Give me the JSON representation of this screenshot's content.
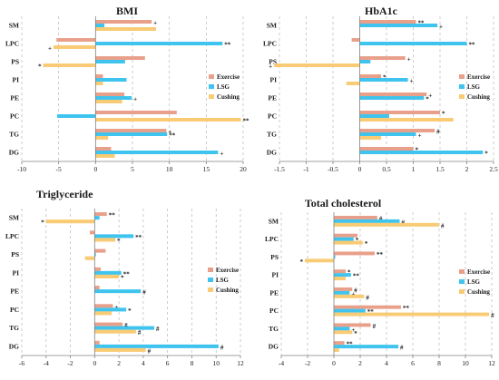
{
  "colors": {
    "Exercise": "#E9A08A",
    "LSG": "#3EC4EE",
    "Cushing": "#F8CB74",
    "gridline": "#B8B8B8",
    "axis": "#808080",
    "text": "#1A1A1A"
  },
  "chart_data": [
    {
      "type": "bar",
      "title": "BMI",
      "orientation": "horizontal",
      "categories": [
        "SM",
        "LPC",
        "PS",
        "PI",
        "PE",
        "PC",
        "TG",
        "DG"
      ],
      "series": [
        {
          "name": "Exercise",
          "values": [
            7.6,
            -5.3,
            6.7,
            1.0,
            3.9,
            11.0,
            9.6,
            2.1
          ],
          "marks": [
            "+",
            "",
            "",
            "",
            "",
            "",
            "+",
            ""
          ]
        },
        {
          "name": "LSG",
          "values": [
            1.2,
            17.2,
            4.0,
            4.2,
            4.9,
            -5.2,
            9.7,
            16.6
          ],
          "marks": [
            "",
            "**",
            "",
            "",
            "+",
            "",
            "**",
            "+"
          ]
        },
        {
          "name": "Cushing",
          "values": [
            8.2,
            -5.7,
            -7.1,
            1.0,
            3.6,
            19.7,
            1.7,
            2.6
          ],
          "marks": [
            "",
            "+",
            "*",
            "",
            "",
            "**",
            "",
            ""
          ]
        }
      ],
      "xlim": [
        -10,
        20
      ],
      "xticks": [
        -10,
        -5,
        0,
        5,
        10,
        15,
        20
      ],
      "legend": "right"
    },
    {
      "type": "bar",
      "title": "HbA1c",
      "orientation": "horizontal",
      "categories": [
        "SM",
        "LPC",
        "PS",
        "PI",
        "PE",
        "PC",
        "TG",
        "DG"
      ],
      "series": [
        {
          "name": "Exercise",
          "values": [
            1.05,
            -0.15,
            0.85,
            0.4,
            1.25,
            1.5,
            1.4,
            1.0
          ],
          "marks": [
            "**",
            "",
            "+",
            "*",
            "+",
            "*",
            "#",
            "*"
          ]
        },
        {
          "name": "LSG",
          "values": [
            1.45,
            2.0,
            0.2,
            0.9,
            1.2,
            0.55,
            1.05,
            2.3
          ],
          "marks": [
            "+",
            "**",
            "",
            "+",
            "*",
            "",
            "+",
            "*"
          ]
        },
        {
          "name": "Cushing",
          "values": [
            0.0,
            0.0,
            -1.6,
            -0.25,
            0.0,
            1.75,
            0.4,
            0.0
          ],
          "marks": [
            "",
            "",
            "+",
            "",
            "",
            "",
            "",
            ""
          ]
        }
      ],
      "xlim": [
        -1.5,
        2.5
      ],
      "xticks": [
        -1.5,
        -1,
        -0.5,
        0,
        0.5,
        1,
        1.5,
        2,
        2.5
      ],
      "legend": "right"
    },
    {
      "type": "bar",
      "title": "Triglyceride",
      "orientation": "horizontal",
      "categories": [
        "SM",
        "LPC",
        "PS",
        "PI",
        "PE",
        "PC",
        "TG",
        "DG"
      ],
      "series": [
        {
          "name": "Exercise",
          "values": [
            1.0,
            -0.4,
            0.9,
            0.5,
            0.4,
            1.5,
            2.3,
            0.4
          ],
          "marks": [
            "**",
            "",
            "",
            "",
            "",
            "+",
            "#",
            ""
          ]
        },
        {
          "name": "LSG",
          "values": [
            0.4,
            3.2,
            0.1,
            2.2,
            3.8,
            2.6,
            4.9,
            10.2
          ],
          "marks": [
            "",
            "**",
            "",
            "**",
            "#",
            "*",
            "#",
            "#"
          ]
        },
        {
          "name": "Cushing",
          "values": [
            -4.0,
            1.7,
            -0.8,
            2.0,
            0.0,
            1.4,
            3.4,
            4.2
          ],
          "marks": [
            "*",
            "*",
            "",
            "*",
            "",
            "",
            "#",
            "#"
          ]
        }
      ],
      "xlim": [
        -6,
        12
      ],
      "xticks": [
        -6,
        -4,
        -2,
        0,
        2,
        4,
        6,
        8,
        10,
        12
      ],
      "legend": "right"
    },
    {
      "type": "bar",
      "title": "Total cholesterol",
      "orientation": "horizontal",
      "categories": [
        "SM",
        "LPC",
        "PS",
        "PI",
        "PE",
        "PC",
        "TG",
        "DG"
      ],
      "series": [
        {
          "name": "Exercise",
          "values": [
            3.3,
            1.8,
            3.1,
            0.9,
            1.4,
            5.1,
            2.8,
            0.8
          ],
          "marks": [
            "#",
            "",
            "**",
            "*",
            "#",
            "**",
            "#",
            "**"
          ]
        },
        {
          "name": "LSG",
          "values": [
            5.0,
            1.5,
            0.1,
            1.3,
            1.2,
            2.4,
            1.2,
            4.9
          ],
          "marks": [
            "#",
            "*",
            "",
            "**",
            "+",
            "**",
            "+",
            "#"
          ]
        },
        {
          "name": "Cushing",
          "values": [
            8.0,
            2.2,
            -2.2,
            0.9,
            2.3,
            11.8,
            1.4,
            0.4
          ],
          "marks": [
            "#",
            "*",
            "*",
            "",
            "#",
            "#",
            "*",
            ""
          ]
        }
      ],
      "xlim": [
        -4,
        12
      ],
      "xticks": [
        -4,
        -2,
        0,
        2,
        4,
        6,
        8,
        10,
        12
      ],
      "legend": "right"
    }
  ]
}
